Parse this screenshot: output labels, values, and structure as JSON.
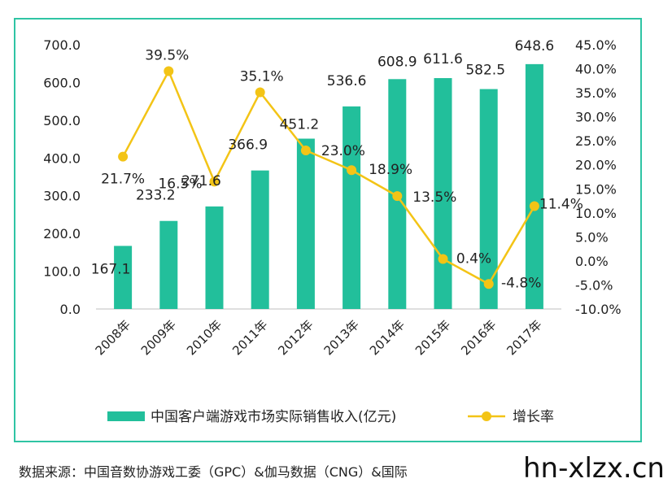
{
  "chart_data": {
    "type": "bar",
    "categories": [
      "2008年",
      "2009年",
      "2010年",
      "2011年",
      "2012年",
      "2013年",
      "2014年",
      "2015年",
      "2016年",
      "2017年"
    ],
    "series": [
      {
        "name": "中国客户端游戏市场实际销售收入(亿元)",
        "type": "bar",
        "axis": "left",
        "values": [
          167.1,
          233.2,
          271.6,
          366.9,
          451.2,
          536.6,
          608.9,
          611.6,
          582.5,
          648.6
        ],
        "labels": [
          "167.1",
          "233.2",
          "271.6",
          "366.9",
          "451.2",
          "536.6",
          "608.9",
          "611.6",
          "582.5",
          "648.6"
        ],
        "color": "#22bf9b"
      },
      {
        "name": "增长率",
        "type": "line",
        "axis": "right",
        "values": [
          21.7,
          39.5,
          16.5,
          35.1,
          23.0,
          18.9,
          13.5,
          0.4,
          -4.8,
          11.4
        ],
        "labels": [
          "21.7%",
          "39.5%",
          "16.5%",
          "35.1%",
          "23.0%",
          "18.9%",
          "13.5%",
          "0.4%",
          "-4.8%",
          "11.4%"
        ],
        "color": "#f3c416"
      }
    ],
    "y_left": {
      "ylim": [
        0,
        700
      ],
      "ticks": [
        "0.0",
        "100.0",
        "200.0",
        "300.0",
        "400.0",
        "500.0",
        "600.0",
        "700.0"
      ]
    },
    "y_right": {
      "ylim": [
        -10,
        45
      ],
      "ticks": [
        "-10.0%",
        "-5.0%",
        "0.0%",
        "5.0%",
        "10.0%",
        "15.0%",
        "20.0%",
        "25.0%",
        "30.0%",
        "35.0%",
        "40.0%",
        "45.0%"
      ]
    },
    "legend_position": "bottom",
    "grid": false
  },
  "source_text": "数据来源：中国音数协游戏工委（GPC）&伽马数据（CNG）&国际",
  "watermark": "hn-xlzx.cn",
  "colors": {
    "frame": "#2fc4a4",
    "bar": "#22bf9b",
    "line": "#f3c416",
    "text": "#222222"
  }
}
